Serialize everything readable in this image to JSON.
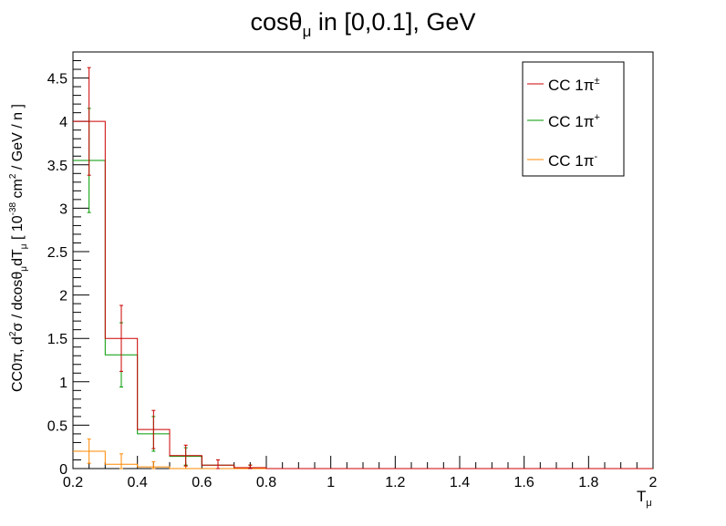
{
  "chart_data": {
    "type": "histogram",
    "title": {
      "main": "cosθ",
      "sub": "μ",
      "rest": " in [0,0.1], GeV"
    },
    "xlabel": {
      "main": "T",
      "sub": "μ"
    },
    "ylabel": {
      "p1": "CC0π, d",
      "sup1": "2",
      "p2": "σ / dcosθ",
      "sub1": "μ",
      "p3": "dT",
      "sub2": "μ",
      "p4": " [ 10",
      "sup2": "-38",
      "p5": " cm",
      "sup3": "2",
      "p6": " / GeV / n ]"
    },
    "xlim": [
      0.2,
      2.0
    ],
    "ylim": [
      0,
      4.8
    ],
    "x_ticks": [
      "0.2",
      "0.4",
      "0.6",
      "0.8",
      "1",
      "1.2",
      "1.4",
      "1.6",
      "1.8",
      "2"
    ],
    "y_ticks": [
      "0",
      "0.5",
      "1",
      "1.5",
      "2",
      "2.5",
      "3",
      "3.5",
      "4",
      "4.5"
    ],
    "bin_edges": [
      0.2,
      0.3,
      0.4,
      0.5,
      0.6,
      0.7,
      0.8,
      2.0
    ],
    "grid": false,
    "legend_position": "top-right",
    "series": [
      {
        "name": "CC 1π",
        "name_sup": "±",
        "color": "#cc0000",
        "values": [
          4.0,
          1.5,
          0.45,
          0.15,
          0.04,
          0.01,
          0.0
        ],
        "errors": [
          0.62,
          0.38,
          0.22,
          0.12,
          0.06,
          0.03,
          0.0
        ]
      },
      {
        "name": "CC 1π",
        "name_sup": "+",
        "color": "#009900",
        "values": [
          3.55,
          1.31,
          0.4,
          0.14,
          0.04,
          0.01,
          0.0
        ],
        "errors": [
          0.6,
          0.37,
          0.2,
          0.1,
          0.06,
          0.03,
          0.0
        ]
      },
      {
        "name": "CC 1π",
        "name_sup": "-",
        "color": "#ff8800",
        "values": [
          0.2,
          0.05,
          0.02,
          0.0,
          0.0,
          0.0,
          0.0
        ],
        "errors": [
          0.14,
          0.12,
          0.06,
          0.03,
          0.0,
          0.0,
          0.0
        ]
      }
    ]
  }
}
